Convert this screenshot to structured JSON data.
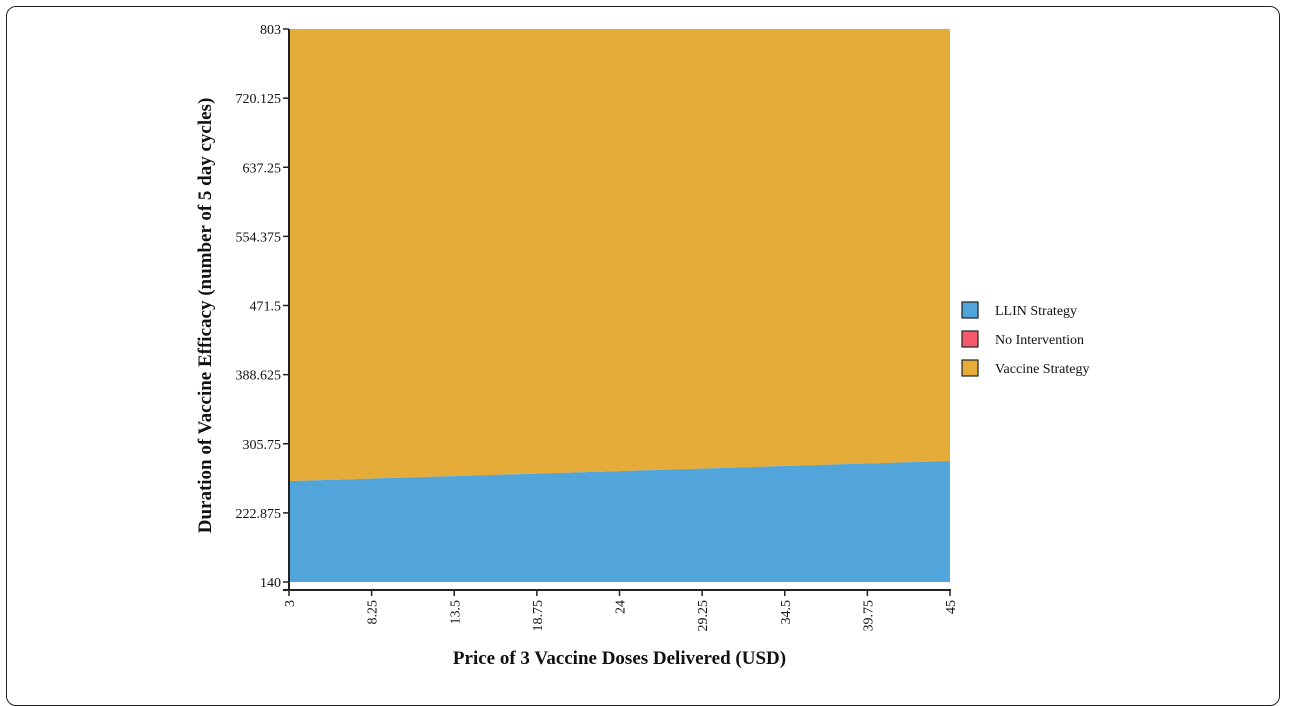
{
  "chart_data": {
    "type": "area",
    "xlabel": "Price of 3 Vaccine Doses Delivered (USD)",
    "ylabel": "Duration of Vaccine Efficacy (number of 5 day cycles)",
    "xlim": [
      3,
      45
    ],
    "ylim": [
      140,
      803
    ],
    "xticks": [
      "3",
      "8.25",
      "13.5",
      "18.75",
      "24",
      "29.25",
      "34.5",
      "39.75",
      "45"
    ],
    "yticks": [
      "140",
      "222.875",
      "305.75",
      "388.625",
      "471.5",
      "554.375",
      "637.25",
      "720.125",
      "803"
    ],
    "boundary": {
      "description_series": "LLIN Strategy / Vaccine Strategy threshold",
      "x": [
        3,
        8.25,
        13.5,
        18.75,
        24,
        29.25,
        34.5,
        39.75,
        45
      ],
      "y": [
        261,
        264,
        267,
        270,
        273,
        276,
        279,
        282,
        285
      ]
    },
    "series": [
      {
        "name": "LLIN Strategy",
        "color": "#51a5da"
      },
      {
        "name": "No Intervention",
        "color": "#f35b6c"
      },
      {
        "name": "Vaccine Strategy",
        "color": "#e6ac3a"
      }
    ],
    "legend_position": "right",
    "grid": false
  }
}
